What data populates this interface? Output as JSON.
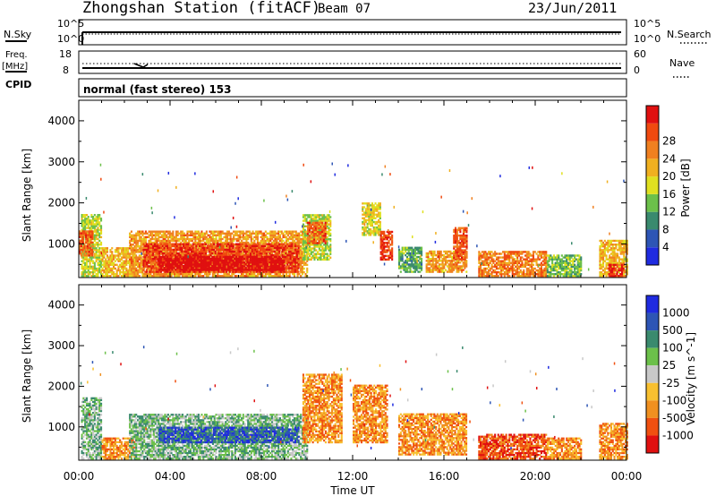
{
  "header": {
    "station": "Zhongshan Station (fitACF)",
    "beam": "Beam 07",
    "date": "23/Jun/2011"
  },
  "colors": {
    "power_scale": [
      "#1f2be0",
      "#2d55b5",
      "#3a8a6e",
      "#6cc04a",
      "#e0e020",
      "#f0b020",
      "#f08020",
      "#f04a10",
      "#e01010"
    ],
    "velocity_scale": [
      "#1f2be0",
      "#2d55b5",
      "#3a8a6e",
      "#6cc04a",
      "#c8c8c8",
      "#f8c030",
      "#f09020",
      "#f05010",
      "#e01010"
    ]
  },
  "panels": {
    "nsky": {
      "left_label": "N.Sky",
      "right_label": "N.Search",
      "left_ticks": [
        "10^5",
        "10^0"
      ],
      "right_ticks": [
        "10^5",
        "10^0"
      ]
    },
    "freq": {
      "left_label_1": "Freq.",
      "left_label_2": "[MHz]",
      "right_label": "Nave",
      "left_ticks": [
        "18",
        "8"
      ],
      "right_ticks": [
        "60",
        "0"
      ]
    },
    "cpid": {
      "label": "CPID",
      "text": "normal (fast stereo) 153"
    }
  },
  "chart_data": [
    {
      "type": "heatmap",
      "name": "power",
      "ylabel": "Slant Range [km]",
      "ylim": [
        180,
        4500
      ],
      "yticks": [
        1000,
        2000,
        3000,
        4000
      ],
      "xlim": [
        0,
        24
      ],
      "colorbar": {
        "label": "Power [dB]",
        "ticks": [
          "4",
          "8",
          "12",
          "16",
          "20",
          "24",
          "28"
        ],
        "range": [
          0,
          30
        ]
      },
      "blobs": [
        {
          "t0": 0.1,
          "t1": 1.0,
          "r0": 200,
          "r1": 1700,
          "v": 14
        },
        {
          "t0": 0.0,
          "t1": 0.6,
          "r0": 700,
          "r1": 1300,
          "v": 24
        },
        {
          "t0": 1.0,
          "t1": 2.5,
          "r0": 200,
          "r1": 900,
          "v": 18
        },
        {
          "t0": 2.2,
          "t1": 10.0,
          "r0": 200,
          "r1": 1300,
          "v": 20
        },
        {
          "t0": 2.8,
          "t1": 9.6,
          "r0": 300,
          "r1": 1000,
          "v": 26
        },
        {
          "t0": 3.5,
          "t1": 9.0,
          "r0": 350,
          "r1": 700,
          "v": 30
        },
        {
          "t0": 9.8,
          "t1": 11.0,
          "r0": 600,
          "r1": 1700,
          "v": 14
        },
        {
          "t0": 10.0,
          "t1": 10.8,
          "r0": 1000,
          "r1": 1500,
          "v": 24
        },
        {
          "t0": 12.4,
          "t1": 13.2,
          "r0": 1200,
          "r1": 2000,
          "v": 16
        },
        {
          "t0": 13.2,
          "t1": 13.7,
          "r0": 600,
          "r1": 1300,
          "v": 26
        },
        {
          "t0": 14.0,
          "t1": 15.0,
          "r0": 300,
          "r1": 900,
          "v": 10
        },
        {
          "t0": 15.2,
          "t1": 17.0,
          "r0": 300,
          "r1": 800,
          "v": 20
        },
        {
          "t0": 16.4,
          "t1": 17.0,
          "r0": 600,
          "r1": 1400,
          "v": 24
        },
        {
          "t0": 17.5,
          "t1": 20.5,
          "r0": 200,
          "r1": 800,
          "v": 22
        },
        {
          "t0": 20.5,
          "t1": 22.0,
          "r0": 200,
          "r1": 700,
          "v": 12
        },
        {
          "t0": 22.8,
          "t1": 24.0,
          "r0": 200,
          "r1": 1100,
          "v": 18
        },
        {
          "t0": 23.2,
          "t1": 23.9,
          "r0": 200,
          "r1": 500,
          "v": 28
        }
      ]
    },
    {
      "type": "heatmap",
      "name": "velocity",
      "ylabel": "Slant Range [km]",
      "ylim": [
        180,
        4500
      ],
      "yticks": [
        1000,
        2000,
        3000,
        4000
      ],
      "xlim": [
        0,
        24
      ],
      "colorbar": {
        "label": "Velocity [m s^-1]",
        "ticks": [
          "1000",
          "500",
          "100",
          "25",
          "-25",
          "-100",
          "-500",
          "-1000"
        ]
      },
      "blobs": [
        {
          "t0": 0.1,
          "t1": 1.0,
          "r0": 200,
          "r1": 1700,
          "v": 3
        },
        {
          "t0": 1.0,
          "t1": 2.5,
          "r0": 200,
          "r1": 700,
          "v": 6
        },
        {
          "t0": 2.2,
          "t1": 10.0,
          "r0": 200,
          "r1": 1300,
          "v": 3
        },
        {
          "t0": 3.5,
          "t1": 9.6,
          "r0": 600,
          "r1": 1000,
          "v": 1
        },
        {
          "t0": 9.8,
          "t1": 11.5,
          "r0": 600,
          "r1": 2300,
          "v": 6
        },
        {
          "t0": 12.0,
          "t1": 13.5,
          "r0": 600,
          "r1": 2000,
          "v": 6
        },
        {
          "t0": 14.0,
          "t1": 17.0,
          "r0": 300,
          "r1": 1300,
          "v": 6
        },
        {
          "t0": 17.5,
          "t1": 20.5,
          "r0": 200,
          "r1": 800,
          "v": 7
        },
        {
          "t0": 20.5,
          "t1": 22.0,
          "r0": 200,
          "r1": 700,
          "v": 6
        },
        {
          "t0": 22.8,
          "t1": 24.0,
          "r0": 200,
          "r1": 1100,
          "v": 6
        }
      ]
    }
  ],
  "xaxis": {
    "ticks": [
      "00:00",
      "04:00",
      "08:00",
      "12:00",
      "16:00",
      "20:00",
      "00:00"
    ],
    "label": "Time UT"
  }
}
